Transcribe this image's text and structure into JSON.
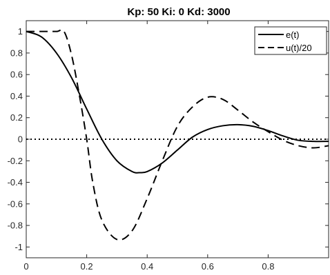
{
  "chart_data": {
    "type": "line",
    "title": "Kp: 50  Ki: 0  Kd: 3000",
    "xlim": [
      0,
      1
    ],
    "ylim": [
      -1.1,
      1.1
    ],
    "xticks": [
      0,
      0.2,
      0.4,
      0.6,
      0.8
    ],
    "xtick_labels": [
      "0",
      "0.2",
      "0.4",
      "0.6",
      "0.8"
    ],
    "yticks": [
      1,
      0.8,
      0.6,
      0.4,
      0.2,
      0,
      -0.2,
      -0.4,
      -0.6,
      -0.8,
      -1
    ],
    "ytick_labels": [
      "1",
      "0.8",
      "0.6",
      "0.4",
      "0.2",
      "0",
      "-0.2",
      "-0.4",
      "-0.6",
      "-0.8",
      "-1"
    ],
    "grid": false,
    "legend_position": "top-right",
    "reference_line": {
      "y": 0,
      "style": "dotted"
    },
    "series": [
      {
        "name": "e(t)",
        "style": "solid",
        "color": "#000000",
        "x": [
          0,
          0.05,
          0.1,
          0.15,
          0.2,
          0.25,
          0.3,
          0.35,
          0.375,
          0.4,
          0.45,
          0.5,
          0.55,
          0.6,
          0.65,
          0.7,
          0.75,
          0.8,
          0.85,
          0.9,
          0.95,
          1.0
        ],
        "y": [
          1.0,
          0.95,
          0.8,
          0.57,
          0.28,
          0.0,
          -0.2,
          -0.3,
          -0.31,
          -0.3,
          -0.22,
          -0.1,
          0.02,
          0.09,
          0.125,
          0.135,
          0.12,
          0.08,
          0.03,
          -0.01,
          -0.02,
          -0.02
        ]
      },
      {
        "name": "u(t)/20",
        "style": "dashed",
        "color": "#000000",
        "x": [
          0,
          0.05,
          0.1,
          0.125,
          0.15,
          0.175,
          0.2,
          0.22,
          0.25,
          0.3,
          0.35,
          0.4,
          0.45,
          0.5,
          0.55,
          0.6,
          0.65,
          0.7,
          0.75,
          0.8,
          0.85,
          0.9,
          0.95,
          1.0
        ],
        "y": [
          1.0,
          1.0,
          1.0,
          1.0,
          0.78,
          0.42,
          0.0,
          -0.4,
          -0.75,
          -0.93,
          -0.85,
          -0.55,
          -0.2,
          0.12,
          0.3,
          0.39,
          0.37,
          0.27,
          0.16,
          0.07,
          -0.01,
          -0.06,
          -0.08,
          -0.06
        ]
      }
    ]
  }
}
